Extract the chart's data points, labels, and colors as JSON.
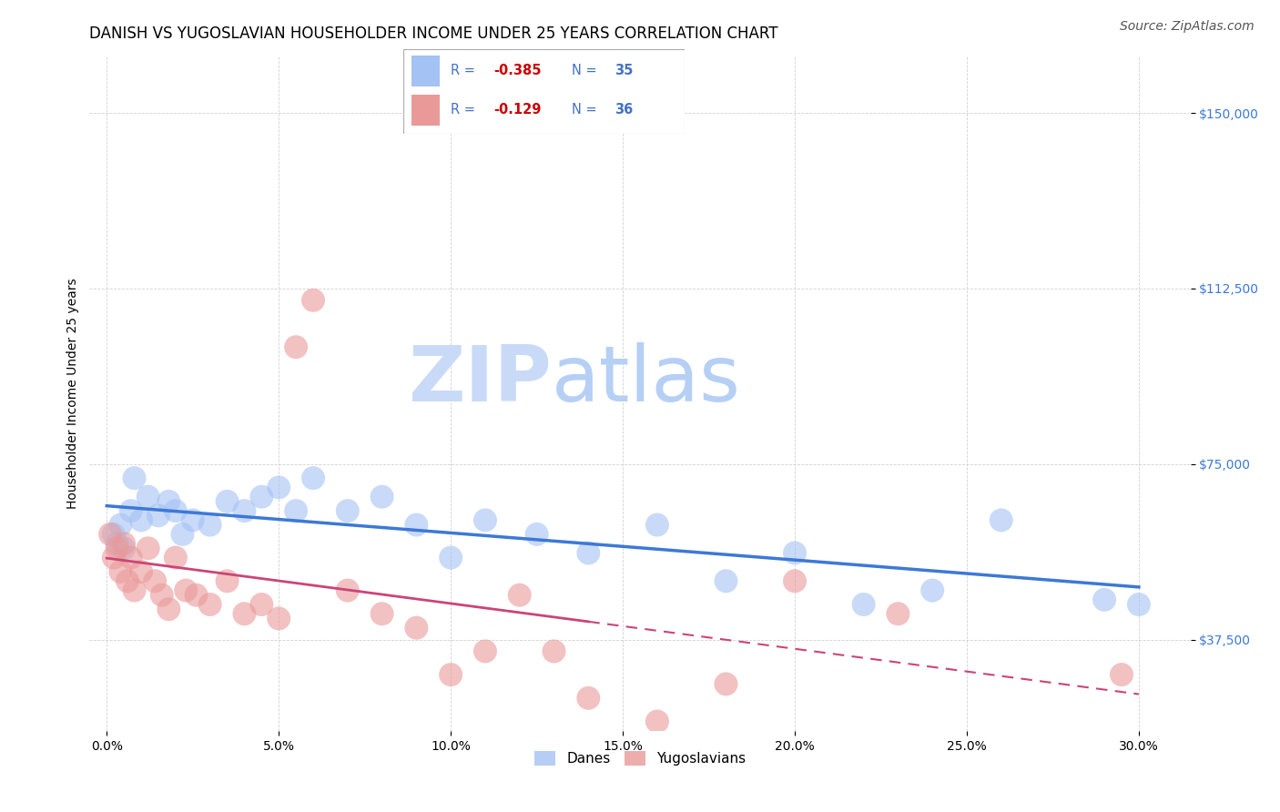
{
  "title": "DANISH VS YUGOSLAVIAN HOUSEHOLDER INCOME UNDER 25 YEARS CORRELATION CHART",
  "source": "Source: ZipAtlas.com",
  "ylabel": "Householder Income Under 25 years",
  "xlabel_ticks": [
    "0.0%",
    "5.0%",
    "10.0%",
    "15.0%",
    "20.0%",
    "25.0%",
    "30.0%"
  ],
  "xlabel_vals": [
    0.0,
    5.0,
    10.0,
    15.0,
    20.0,
    25.0,
    30.0
  ],
  "ytick_labels": [
    "$37,500",
    "$75,000",
    "$112,500",
    "$150,000"
  ],
  "ytick_vals": [
    37500,
    75000,
    112500,
    150000
  ],
  "danes_x": [
    0.2,
    0.3,
    0.4,
    0.5,
    0.7,
    0.8,
    1.0,
    1.2,
    1.5,
    1.8,
    2.0,
    2.2,
    2.5,
    3.0,
    3.5,
    4.0,
    4.5,
    5.0,
    5.5,
    6.0,
    7.0,
    8.0,
    9.0,
    10.0,
    11.0,
    12.5,
    14.0,
    16.0,
    18.0,
    20.0,
    22.0,
    24.0,
    26.0,
    29.0,
    30.0
  ],
  "danes_y": [
    60000,
    58000,
    62000,
    57000,
    65000,
    72000,
    63000,
    68000,
    64000,
    67000,
    65000,
    60000,
    63000,
    62000,
    67000,
    65000,
    68000,
    70000,
    65000,
    72000,
    65000,
    68000,
    62000,
    55000,
    63000,
    60000,
    56000,
    62000,
    50000,
    56000,
    45000,
    48000,
    63000,
    46000,
    45000
  ],
  "yugo_x": [
    0.1,
    0.2,
    0.3,
    0.4,
    0.5,
    0.6,
    0.7,
    0.8,
    1.0,
    1.2,
    1.4,
    1.6,
    1.8,
    2.0,
    2.3,
    2.6,
    3.0,
    3.5,
    4.0,
    4.5,
    5.0,
    5.5,
    6.0,
    7.0,
    8.0,
    9.0,
    10.0,
    11.0,
    12.0,
    13.0,
    14.0,
    16.0,
    18.0,
    20.0,
    23.0,
    29.5
  ],
  "yugo_y": [
    60000,
    55000,
    57000,
    52000,
    58000,
    50000,
    55000,
    48000,
    52000,
    57000,
    50000,
    47000,
    44000,
    55000,
    48000,
    47000,
    45000,
    50000,
    43000,
    45000,
    42000,
    100000,
    110000,
    48000,
    43000,
    40000,
    30000,
    35000,
    47000,
    35000,
    25000,
    20000,
    28000,
    50000,
    43000,
    30000
  ],
  "dane_R": -0.385,
  "dane_N": 35,
  "yugo_R": -0.129,
  "yugo_N": 36,
  "blue_color": "#a4c2f4",
  "pink_color": "#ea9999",
  "blue_line_color": "#3c78d8",
  "pink_line_color": "#cc4477",
  "watermark_zip": "ZIP",
  "watermark_atlas": "atlas",
  "watermark_color": "#c9daf8",
  "watermark_atlas_color": "#b6cff5",
  "title_fontsize": 12,
  "source_fontsize": 10,
  "axis_label_fontsize": 10,
  "tick_fontsize": 10,
  "legend_blue_text": "#4472c4",
  "legend_pink_text": "#cc0000",
  "legend_N_color": "#4472c4"
}
